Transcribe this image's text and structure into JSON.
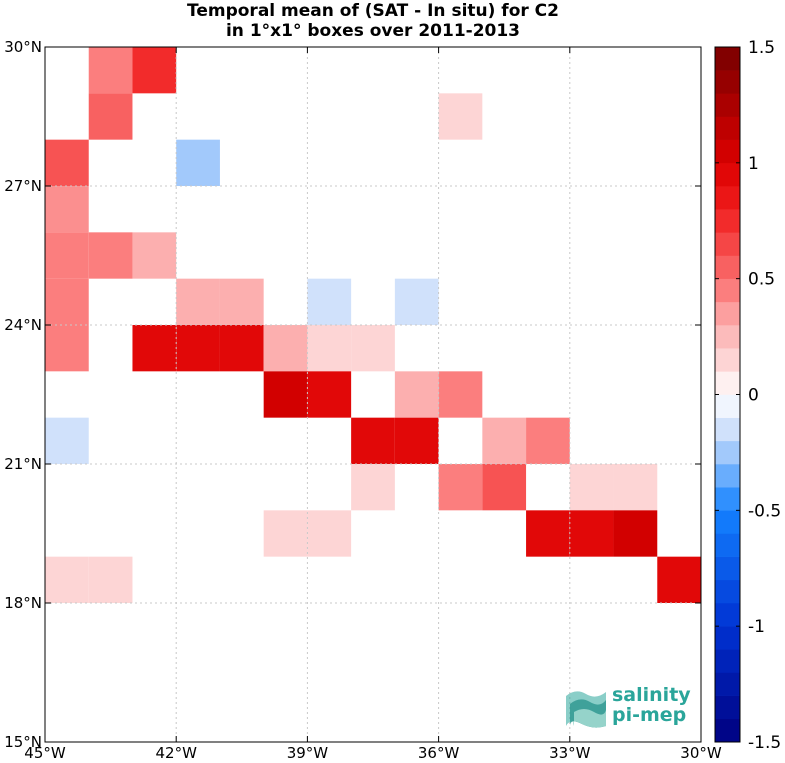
{
  "title_line1": "Temporal mean of (SAT - In situ) for C2",
  "title_line2": "in 1°x1° boxes over 2011-2013",
  "logo": {
    "line1": "salinity",
    "line2": "pi-mep"
  },
  "chart_data": {
    "type": "heatmap",
    "title": "Temporal mean of (SAT - In situ) for C2 in 1°x1° boxes over 2011-2013",
    "xlim": [
      -45,
      -30
    ],
    "ylim": [
      15,
      30
    ],
    "x_ticks": [
      -45,
      -42,
      -39,
      -36,
      -33,
      -30
    ],
    "x_tick_labels": [
      "45°W",
      "42°W",
      "39°W",
      "36°W",
      "33°W",
      "30°W"
    ],
    "y_ticks": [
      15,
      18,
      21,
      24,
      27,
      30
    ],
    "y_tick_labels": [
      "15°N",
      "18°N",
      "21°N",
      "24°N",
      "27°N",
      "30°N"
    ],
    "grid": true,
    "colorbar": {
      "range": [
        -1.5,
        1.5
      ],
      "step": 0.1,
      "ticks": [
        1.5,
        1,
        0.5,
        0,
        -0.5,
        -1,
        -1.5
      ],
      "tick_labels": [
        "1.5",
        "1",
        "0.5",
        "0",
        "-0.5",
        "-1",
        "-1.5"
      ],
      "position": "right"
    },
    "cells": [
      {
        "lon": -44,
        "lat": 29,
        "value": 0.45
      },
      {
        "lon": -43,
        "lat": 29,
        "value": 0.75
      },
      {
        "lon": -44,
        "lat": 28,
        "value": 0.55
      },
      {
        "lon": -36,
        "lat": 28,
        "value": 0.15
      },
      {
        "lon": -45,
        "lat": 27,
        "value": 0.6
      },
      {
        "lon": -42,
        "lat": 27,
        "value": -0.25
      },
      {
        "lon": -45,
        "lat": 26,
        "value": 0.4
      },
      {
        "lon": -45,
        "lat": 25,
        "value": 0.45
      },
      {
        "lon": -44,
        "lat": 25,
        "value": 0.45
      },
      {
        "lon": -43,
        "lat": 25,
        "value": 0.3
      },
      {
        "lon": -45,
        "lat": 24,
        "value": 0.45
      },
      {
        "lon": -42,
        "lat": 24,
        "value": 0.3
      },
      {
        "lon": -41,
        "lat": 24,
        "value": 0.3
      },
      {
        "lon": -39,
        "lat": 24,
        "value": -0.15
      },
      {
        "lon": -37,
        "lat": 24,
        "value": -0.15
      },
      {
        "lon": -45,
        "lat": 23,
        "value": 0.45
      },
      {
        "lon": -43,
        "lat": 23,
        "value": 0.95
      },
      {
        "lon": -42,
        "lat": 23,
        "value": 0.95
      },
      {
        "lon": -41,
        "lat": 23,
        "value": 0.95
      },
      {
        "lon": -40,
        "lat": 23,
        "value": 0.3
      },
      {
        "lon": -39,
        "lat": 23,
        "value": 0.15
      },
      {
        "lon": -38,
        "lat": 23,
        "value": 0.15
      },
      {
        "lon": -40,
        "lat": 22,
        "value": 1.05
      },
      {
        "lon": -39,
        "lat": 22,
        "value": 0.95
      },
      {
        "lon": -37,
        "lat": 22,
        "value": 0.3
      },
      {
        "lon": -36,
        "lat": 22,
        "value": 0.45
      },
      {
        "lon": -45,
        "lat": 21,
        "value": -0.15
      },
      {
        "lon": -38,
        "lat": 21,
        "value": 0.95
      },
      {
        "lon": -37,
        "lat": 21,
        "value": 0.95
      },
      {
        "lon": -35,
        "lat": 21,
        "value": 0.3
      },
      {
        "lon": -34,
        "lat": 21,
        "value": 0.45
      },
      {
        "lon": -38,
        "lat": 20,
        "value": 0.15
      },
      {
        "lon": -36,
        "lat": 20,
        "value": 0.45
      },
      {
        "lon": -35,
        "lat": 20,
        "value": 0.6
      },
      {
        "lon": -33,
        "lat": 20,
        "value": 0.15
      },
      {
        "lon": -32,
        "lat": 20,
        "value": 0.15
      },
      {
        "lon": -40,
        "lat": 19,
        "value": 0.15
      },
      {
        "lon": -39,
        "lat": 19,
        "value": 0.15
      },
      {
        "lon": -34,
        "lat": 19,
        "value": 0.95
      },
      {
        "lon": -33,
        "lat": 19,
        "value": 0.95
      },
      {
        "lon": -32,
        "lat": 19,
        "value": 1.05
      },
      {
        "lon": -45,
        "lat": 18,
        "value": 0.15
      },
      {
        "lon": -44,
        "lat": 18,
        "value": 0.15
      },
      {
        "lon": -31,
        "lat": 18,
        "value": 0.95
      }
    ]
  }
}
